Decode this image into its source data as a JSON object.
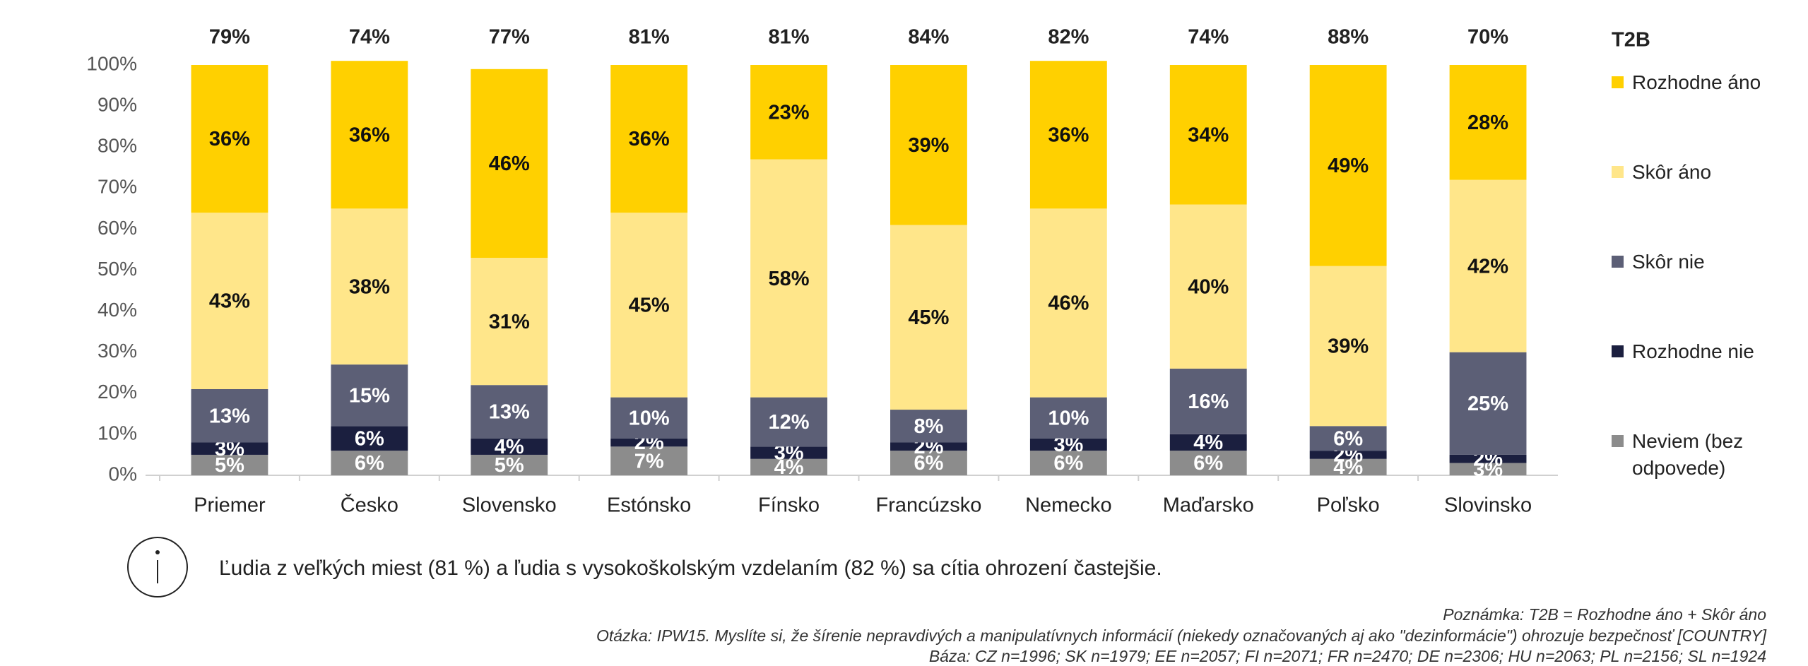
{
  "chart_data": {
    "type": "stacked_bar",
    "categories": [
      "Priemer",
      "Česko",
      "Slovensko",
      "Estónsko",
      "Fínsko",
      "Francúzsko",
      "Nemecko",
      "Maďarsko",
      "Poľsko",
      "Slovinsko"
    ],
    "series": [
      {
        "name": "Neviem (bez odpovede)",
        "color": "#8c8c8c",
        "label_color": "#ffffff",
        "values": [
          5,
          6,
          5,
          7,
          4,
          6,
          6,
          6,
          4,
          3
        ],
        "value_labels": [
          "5%",
          "6%",
          "5%",
          "7%",
          "4%",
          "6%",
          "6%",
          "6%",
          "4%",
          "3%"
        ]
      },
      {
        "name": "Rozhodne nie",
        "color": "#1b1f3f",
        "label_color": "#ffffff",
        "values": [
          3,
          6,
          4,
          2,
          3,
          2,
          3,
          4,
          2,
          2
        ],
        "value_labels": [
          "3%",
          "6%",
          "4%",
          "2%",
          "3%",
          "2%",
          "3%",
          "4%",
          "2%",
          "2%"
        ]
      },
      {
        "name": "Skôr nie",
        "color": "#5c5f76",
        "label_color": "#ffffff",
        "values": [
          13,
          15,
          13,
          10,
          12,
          8,
          10,
          16,
          6,
          25
        ],
        "value_labels": [
          "13%",
          "15%",
          "13%",
          "10%",
          "12%",
          "8%",
          "10%",
          "16%",
          "6%",
          "25%"
        ]
      },
      {
        "name": "Skôr áno",
        "color": "#ffe68a",
        "label_color": "#111111",
        "values": [
          43,
          38,
          31,
          45,
          58,
          45,
          46,
          40,
          39,
          42
        ],
        "value_labels": [
          "43%",
          "38%",
          "31%",
          "45%",
          "58%",
          "45%",
          "46%",
          "40%",
          "39%",
          "42%"
        ]
      },
      {
        "name": "Rozhodne áno",
        "color": "#ffd000",
        "label_color": "#111111",
        "values": [
          36,
          36,
          46,
          36,
          23,
          39,
          36,
          34,
          49,
          28
        ],
        "value_labels": [
          "36%",
          "36%",
          "46%",
          "36%",
          "23%",
          "39%",
          "36%",
          "34%",
          "49%",
          "28%"
        ]
      }
    ],
    "t2b": {
      "name": "T2B",
      "values": [
        79,
        74,
        77,
        81,
        81,
        84,
        82,
        74,
        88,
        70
      ],
      "value_labels": [
        "79%",
        "74%",
        "77%",
        "81%",
        "81%",
        "84%",
        "82%",
        "74%",
        "88%",
        "70%"
      ]
    },
    "ylim": [
      0,
      100
    ],
    "yticks": [
      {
        "value": 0,
        "label": "0%"
      },
      {
        "value": 10,
        "label": "10%"
      },
      {
        "value": 20,
        "label": "20%"
      },
      {
        "value": 30,
        "label": "30%"
      },
      {
        "value": 40,
        "label": "40%"
      },
      {
        "value": 50,
        "label": "50%"
      },
      {
        "value": 60,
        "label": "60%"
      },
      {
        "value": 70,
        "label": "70%"
      },
      {
        "value": 80,
        "label": "80%"
      },
      {
        "value": 90,
        "label": "90%"
      },
      {
        "value": 100,
        "label": "100%"
      }
    ],
    "legend": "right"
  },
  "info": "Ľudia z veľkých miest (81 %) a ľudia s vysokoškolským vzdelaním (82 %) sa cítia ohrození častejšie.",
  "footnotes": [
    "Poznámka: T2B = Rozhodne áno + Skôr áno",
    "Otázka: IPW15. Myslíte si, že šírenie nepravdivých a manipulatívnych informácií (niekedy označovaných aj ako \"dezinformácie\") ohrozuje bezpečnosť [COUNTRY]",
    "Báza: CZ n=1996; SK n=1979; EE n=2057; FI n=2071; FR n=2470; DE n=2306; HU n=2063; PL n=2156; SL n=1924"
  ]
}
